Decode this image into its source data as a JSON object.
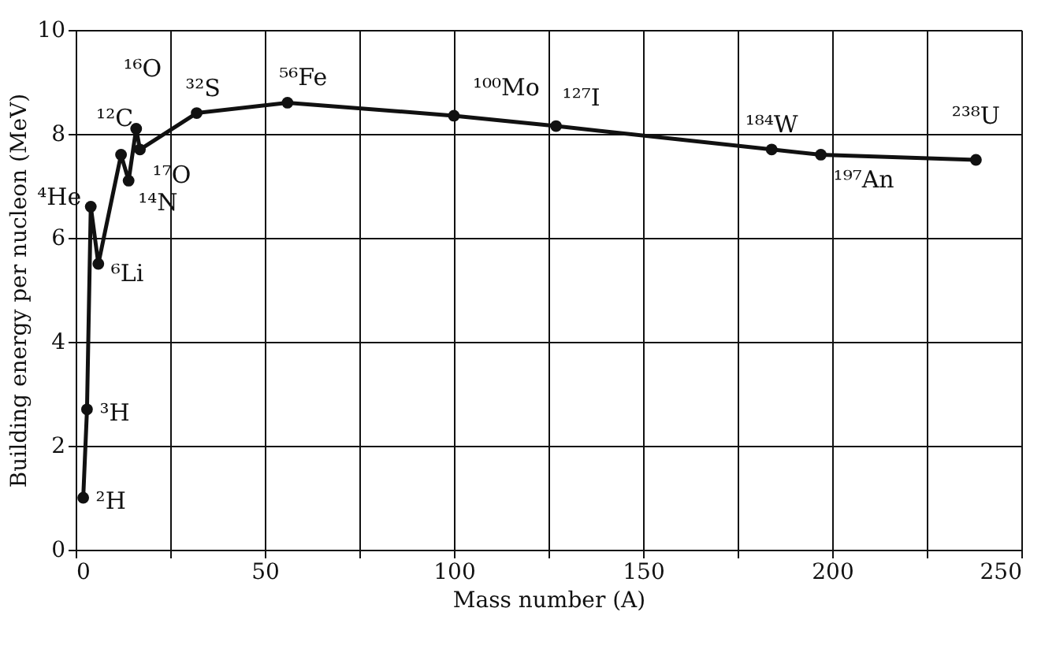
{
  "chart_data": {
    "type": "line",
    "xlabel": "Mass number (A)",
    "ylabel": "Building energy per nucleon (MeV)",
    "x": [
      2,
      3,
      4,
      6,
      12,
      14,
      16,
      17,
      32,
      56,
      100,
      127,
      184,
      197,
      238
    ],
    "series": [
      {
        "color": "#111111",
        "values": [
          1.0,
          2.7,
          6.6,
          5.5,
          7.6,
          7.1,
          8.1,
          7.7,
          8.4,
          8.6,
          8.35,
          8.15,
          7.7,
          7.6,
          7.5
        ]
      }
    ],
    "xlim": [
      0,
      250
    ],
    "ylim": [
      0,
      10
    ],
    "xticks": [
      0,
      {
        "value": 25,
        "label": null
      },
      50,
      {
        "value": 75,
        "label": null
      },
      100,
      {
        "value": 125,
        "label": null
      },
      150,
      {
        "value": 175,
        "label": null
      },
      200,
      {
        "value": 225,
        "label": null
      },
      250
    ],
    "yticks": [
      0,
      2,
      4,
      6,
      8,
      10
    ],
    "grid": true,
    "marker": "circle",
    "line_style": "solid",
    "annotations": [
      {
        "text": "²H",
        "x": 2,
        "y": 1.0
      },
      {
        "text": "³H",
        "x": 3,
        "y": 2.7
      },
      {
        "text": "⁴He",
        "x": 4,
        "y": 6.6
      },
      {
        "text": "⁶Li",
        "x": 6,
        "y": 5.5
      },
      {
        "text": "¹²C",
        "x": 12,
        "y": 7.6
      },
      {
        "text": "¹⁴N",
        "x": 14,
        "y": 7.1
      },
      {
        "text": "¹⁶O",
        "x": 16,
        "y": 8.1
      },
      {
        "text": "¹⁷O",
        "x": 17,
        "y": 7.7
      },
      {
        "text": "³²S",
        "x": 32,
        "y": 8.4
      },
      {
        "text": "⁵⁶Fe",
        "x": 56,
        "y": 8.6
      },
      {
        "text": "¹⁰⁰Mo",
        "x": 100,
        "y": 8.35
      },
      {
        "text": "¹²⁷I",
        "x": 127,
        "y": 8.15
      },
      {
        "text": "¹⁸⁴W",
        "x": 184,
        "y": 7.7
      },
      {
        "text": "¹⁹⁷An",
        "x": 197,
        "y": 7.6
      },
      {
        "text": "²³⁸U",
        "x": 238,
        "y": 7.5
      }
    ]
  }
}
